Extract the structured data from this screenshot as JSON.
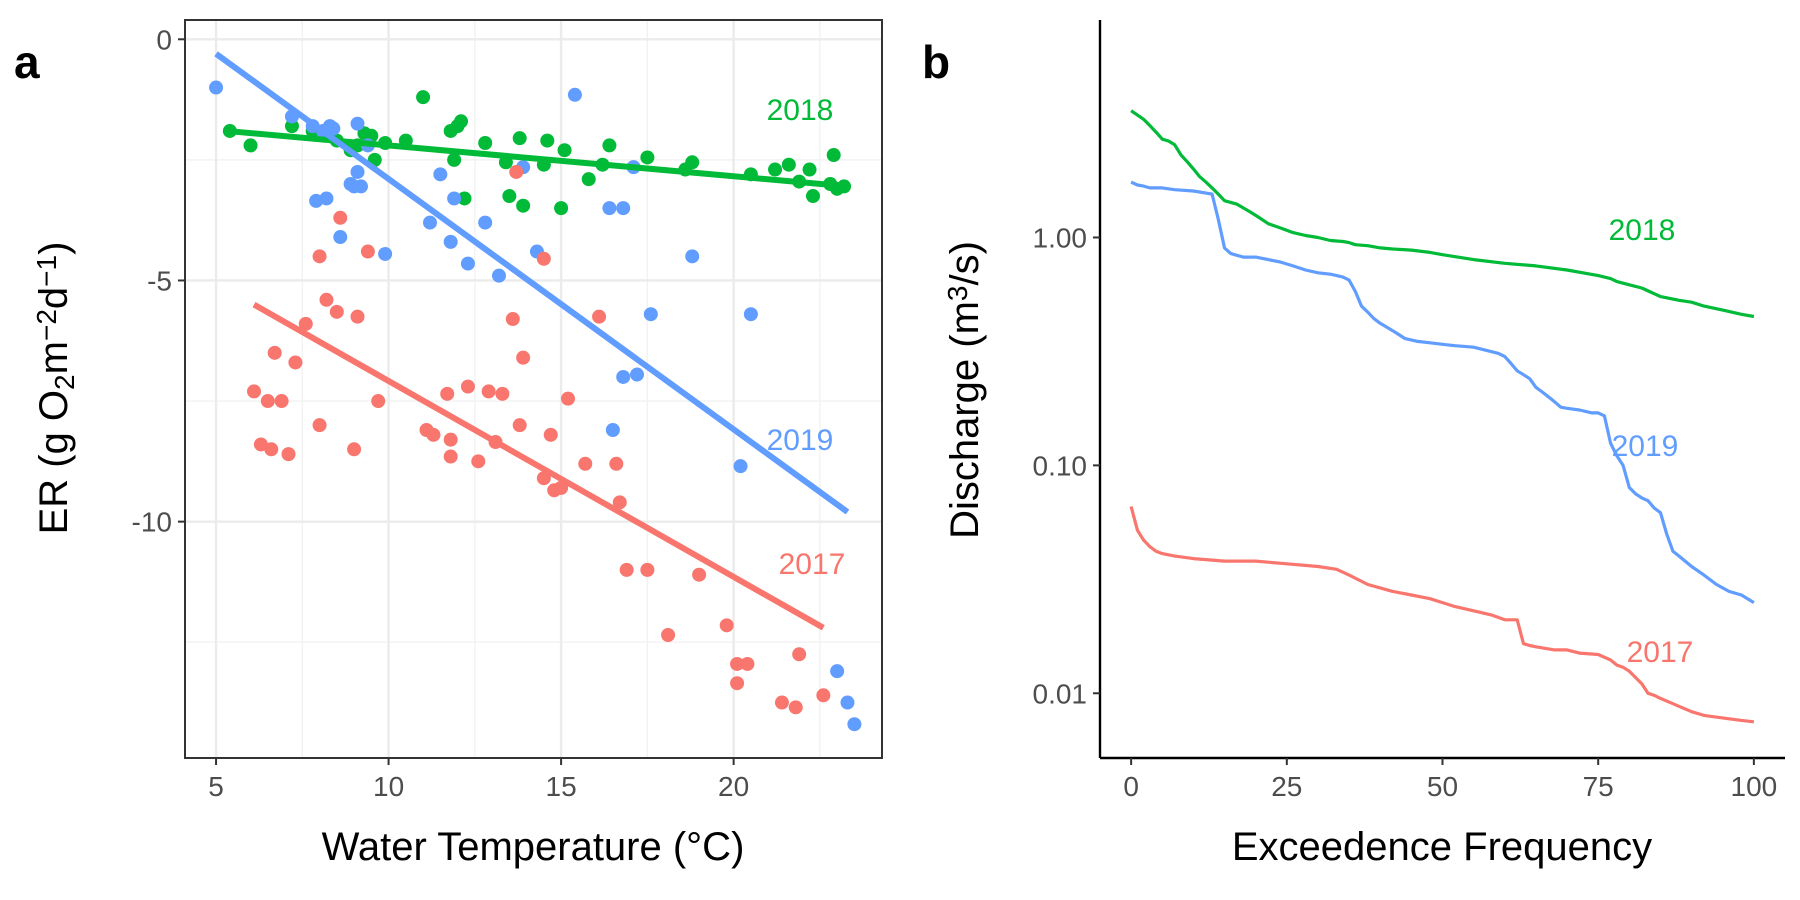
{
  "chart_data": [
    {
      "panel": "a",
      "type": "scatter",
      "xlabel": "Water Temperature (°C)",
      "ylabel_parts": [
        "ER (g O",
        "2",
        "m",
        "−2",
        "d",
        "−1",
        ")"
      ],
      "xlim": [
        4.1,
        24.3
      ],
      "ylim": [
        -14.9,
        0.4
      ],
      "x_ticks": [
        5,
        10,
        15,
        20
      ],
      "y_ticks": [
        0,
        -5,
        -10
      ],
      "y_tick_labels": [
        "0",
        "-5",
        "-10"
      ],
      "grid": true,
      "series": [
        {
          "name": "2018",
          "color": "#00ba38",
          "trend": {
            "x": [
              5.3,
              23.3
            ],
            "y": [
              -1.9,
              -3.05
            ]
          },
          "points": [
            [
              5.4,
              -1.9
            ],
            [
              6.0,
              -2.2
            ],
            [
              7.2,
              -1.8
            ],
            [
              7.8,
              -1.9
            ],
            [
              8.2,
              -1.95
            ],
            [
              8.5,
              -2.1
            ],
            [
              8.9,
              -2.3
            ],
            [
              9.1,
              -2.2
            ],
            [
              9.3,
              -1.95
            ],
            [
              9.5,
              -2.0
            ],
            [
              9.6,
              -2.5
            ],
            [
              9.9,
              -2.15
            ],
            [
              10.5,
              -2.1
            ],
            [
              11.0,
              -1.2
            ],
            [
              11.8,
              -1.9
            ],
            [
              11.9,
              -2.5
            ],
            [
              12.0,
              -1.8
            ],
            [
              12.1,
              -1.7
            ],
            [
              12.2,
              -3.3
            ],
            [
              12.8,
              -2.15
            ],
            [
              13.4,
              -2.55
            ],
            [
              13.5,
              -3.25
            ],
            [
              13.8,
              -2.05
            ],
            [
              13.9,
              -3.45
            ],
            [
              14.5,
              -2.6
            ],
            [
              14.6,
              -2.1
            ],
            [
              15.0,
              -3.5
            ],
            [
              15.1,
              -2.3
            ],
            [
              15.8,
              -2.9
            ],
            [
              16.2,
              -2.6
            ],
            [
              16.4,
              -2.2
            ],
            [
              17.5,
              -2.45
            ],
            [
              18.6,
              -2.7
            ],
            [
              18.8,
              -2.55
            ],
            [
              20.5,
              -2.8
            ],
            [
              21.2,
              -2.7
            ],
            [
              21.6,
              -2.6
            ],
            [
              21.9,
              -2.95
            ],
            [
              22.2,
              -2.7
            ],
            [
              22.3,
              -3.25
            ],
            [
              22.8,
              -3.0
            ],
            [
              22.9,
              -2.4
            ],
            [
              23.0,
              -3.1
            ],
            [
              23.2,
              -3.05
            ]
          ]
        },
        {
          "name": "2019",
          "color": "#619cff",
          "trend": {
            "x": [
              5.0,
              23.3
            ],
            "y": [
              -0.3,
              -9.8
            ]
          },
          "points": [
            [
              5.0,
              -1.0
            ],
            [
              7.2,
              -1.6
            ],
            [
              7.8,
              -1.8
            ],
            [
              7.9,
              -3.35
            ],
            [
              8.1,
              -1.9
            ],
            [
              8.2,
              -3.3
            ],
            [
              8.3,
              -1.8
            ],
            [
              8.4,
              -1.85
            ],
            [
              8.6,
              -4.1
            ],
            [
              8.9,
              -3.0
            ],
            [
              9.0,
              -3.05
            ],
            [
              9.1,
              -1.75
            ],
            [
              9.1,
              -2.75
            ],
            [
              9.2,
              -3.05
            ],
            [
              9.4,
              -2.2
            ],
            [
              9.9,
              -4.45
            ],
            [
              11.2,
              -3.8
            ],
            [
              11.5,
              -2.8
            ],
            [
              11.8,
              -4.2
            ],
            [
              11.9,
              -3.3
            ],
            [
              12.3,
              -4.65
            ],
            [
              12.8,
              -3.8
            ],
            [
              13.2,
              -4.9
            ],
            [
              13.9,
              -2.65
            ],
            [
              14.3,
              -4.4
            ],
            [
              15.4,
              -1.15
            ],
            [
              16.4,
              -3.5
            ],
            [
              16.5,
              -8.1
            ],
            [
              16.8,
              -3.5
            ],
            [
              16.8,
              -7.0
            ],
            [
              17.1,
              -2.65
            ],
            [
              17.2,
              -6.95
            ],
            [
              17.6,
              -5.7
            ],
            [
              18.8,
              -4.5
            ],
            [
              20.2,
              -8.85
            ],
            [
              20.5,
              -5.7
            ],
            [
              23.0,
              -13.1
            ],
            [
              23.3,
              -13.75
            ],
            [
              23.5,
              -14.2
            ]
          ]
        },
        {
          "name": "2017",
          "color": "#f8766d",
          "trend": {
            "x": [
              6.1,
              22.6
            ],
            "y": [
              -5.5,
              -12.2
            ]
          },
          "points": [
            [
              6.1,
              -7.3
            ],
            [
              6.3,
              -8.4
            ],
            [
              6.5,
              -7.5
            ],
            [
              6.6,
              -8.5
            ],
            [
              6.7,
              -6.5
            ],
            [
              6.9,
              -7.5
            ],
            [
              7.1,
              -8.6
            ],
            [
              7.3,
              -6.7
            ],
            [
              7.6,
              -5.9
            ],
            [
              8.0,
              -4.5
            ],
            [
              8.0,
              -8.0
            ],
            [
              8.2,
              -5.4
            ],
            [
              8.5,
              -5.65
            ],
            [
              8.6,
              -3.7
            ],
            [
              9.0,
              -8.5
            ],
            [
              9.1,
              -5.75
            ],
            [
              9.4,
              -4.4
            ],
            [
              9.7,
              -7.5
            ],
            [
              11.1,
              -8.1
            ],
            [
              11.3,
              -8.2
            ],
            [
              11.7,
              -7.35
            ],
            [
              11.8,
              -8.3
            ],
            [
              11.8,
              -8.65
            ],
            [
              12.3,
              -7.2
            ],
            [
              12.6,
              -8.75
            ],
            [
              12.9,
              -7.3
            ],
            [
              13.1,
              -8.35
            ],
            [
              13.3,
              -7.35
            ],
            [
              13.6,
              -5.8
            ],
            [
              13.7,
              -2.75
            ],
            [
              13.8,
              -8.0
            ],
            [
              13.9,
              -6.6
            ],
            [
              14.5,
              -4.55
            ],
            [
              14.5,
              -9.1
            ],
            [
              14.7,
              -8.2
            ],
            [
              14.8,
              -9.35
            ],
            [
              15.0,
              -9.3
            ],
            [
              15.2,
              -7.45
            ],
            [
              15.7,
              -8.8
            ],
            [
              16.1,
              -5.75
            ],
            [
              16.6,
              -8.8
            ],
            [
              16.7,
              -9.6
            ],
            [
              16.9,
              -11.0
            ],
            [
              17.5,
              -11.0
            ],
            [
              18.1,
              -12.35
            ],
            [
              19.0,
              -11.1
            ],
            [
              19.8,
              -12.15
            ],
            [
              20.1,
              -12.95
            ],
            [
              20.1,
              -13.35
            ],
            [
              20.4,
              -12.95
            ],
            [
              21.4,
              -13.75
            ],
            [
              21.8,
              -13.85
            ],
            [
              21.9,
              -12.75
            ],
            [
              22.6,
              -13.6
            ]
          ]
        }
      ]
    },
    {
      "panel": "b",
      "type": "line",
      "xlabel": "Exceedence Frequency",
      "ylabel_parts": [
        "Discharge (m",
        "3",
        "/s)"
      ],
      "y_scale": "log10",
      "xlim": [
        -5,
        105
      ],
      "ylim": [
        0.0052,
        9.0
      ],
      "x_ticks": [
        0,
        25,
        50,
        75,
        100
      ],
      "y_ticks": [
        1.0,
        0.1,
        0.01
      ],
      "y_tick_labels": [
        "1.00",
        "0.10",
        "0.01"
      ],
      "grid": false,
      "series": [
        {
          "name": "2018",
          "color": "#00ba38",
          "x": [
            0,
            2,
            3,
            4,
            5,
            6,
            7,
            8,
            9,
            10,
            11,
            12,
            13,
            14,
            15,
            17,
            19,
            20,
            21,
            22,
            24,
            26,
            28,
            30,
            32,
            34,
            35,
            36,
            38,
            40,
            42,
            45,
            48,
            50,
            55,
            60,
            65,
            70,
            75,
            77,
            78,
            80,
            82,
            85,
            88,
            90,
            92,
            95,
            98,
            100
          ],
          "y": [
            3.6,
            3.3,
            3.1,
            2.9,
            2.7,
            2.65,
            2.55,
            2.3,
            2.15,
            2.0,
            1.85,
            1.75,
            1.65,
            1.55,
            1.45,
            1.4,
            1.3,
            1.25,
            1.2,
            1.15,
            1.1,
            1.05,
            1.02,
            1.0,
            0.97,
            0.96,
            0.95,
            0.93,
            0.92,
            0.9,
            0.89,
            0.88,
            0.86,
            0.84,
            0.8,
            0.77,
            0.75,
            0.72,
            0.68,
            0.66,
            0.64,
            0.62,
            0.6,
            0.55,
            0.53,
            0.52,
            0.5,
            0.48,
            0.46,
            0.45
          ]
        },
        {
          "name": "2019",
          "color": "#619cff",
          "x": [
            0,
            1,
            2,
            3,
            5,
            7,
            10,
            13,
            14,
            15,
            16,
            18,
            20,
            22,
            24,
            26,
            28,
            30,
            32,
            33,
            34,
            35,
            36,
            37,
            38,
            39,
            40,
            42,
            44,
            46,
            48,
            50,
            52,
            55,
            57,
            59,
            60,
            61,
            62,
            63,
            64,
            65,
            66,
            67,
            68,
            69,
            70,
            72,
            74,
            75,
            76,
            77,
            78,
            79,
            80,
            81,
            82,
            83,
            84,
            85,
            86,
            87,
            88,
            90,
            92,
            94,
            96,
            98,
            100
          ],
          "y": [
            1.75,
            1.7,
            1.68,
            1.65,
            1.65,
            1.62,
            1.6,
            1.55,
            1.2,
            0.9,
            0.85,
            0.82,
            0.82,
            0.8,
            0.78,
            0.75,
            0.72,
            0.7,
            0.69,
            0.68,
            0.67,
            0.65,
            0.58,
            0.5,
            0.47,
            0.44,
            0.42,
            0.39,
            0.36,
            0.35,
            0.345,
            0.34,
            0.335,
            0.33,
            0.32,
            0.31,
            0.3,
            0.28,
            0.26,
            0.25,
            0.24,
            0.22,
            0.21,
            0.2,
            0.19,
            0.18,
            0.178,
            0.175,
            0.17,
            0.17,
            0.165,
            0.125,
            0.11,
            0.1,
            0.08,
            0.075,
            0.072,
            0.07,
            0.065,
            0.062,
            0.05,
            0.042,
            0.04,
            0.036,
            0.033,
            0.03,
            0.028,
            0.027,
            0.025
          ]
        },
        {
          "name": "2017",
          "color": "#f8766d",
          "x": [
            0,
            1,
            2,
            3,
            4,
            5,
            7,
            10,
            15,
            20,
            25,
            30,
            33,
            34,
            35,
            36,
            38,
            40,
            42,
            45,
            48,
            50,
            52,
            55,
            58,
            60,
            61,
            62,
            63,
            64,
            65,
            68,
            70,
            72,
            75,
            77,
            78,
            79,
            80,
            82,
            83,
            84,
            85,
            87,
            90,
            92,
            95,
            98,
            100
          ],
          "y": [
            0.066,
            0.052,
            0.047,
            0.044,
            0.042,
            0.041,
            0.04,
            0.039,
            0.038,
            0.038,
            0.037,
            0.036,
            0.035,
            0.034,
            0.033,
            0.032,
            0.03,
            0.029,
            0.028,
            0.027,
            0.026,
            0.025,
            0.024,
            0.023,
            0.022,
            0.021,
            0.021,
            0.021,
            0.0165,
            0.0162,
            0.016,
            0.0155,
            0.0155,
            0.015,
            0.0148,
            0.014,
            0.0133,
            0.013,
            0.0125,
            0.011,
            0.01,
            0.0098,
            0.0095,
            0.009,
            0.0083,
            0.008,
            0.0078,
            0.0076,
            0.0075
          ]
        }
      ]
    }
  ]
}
